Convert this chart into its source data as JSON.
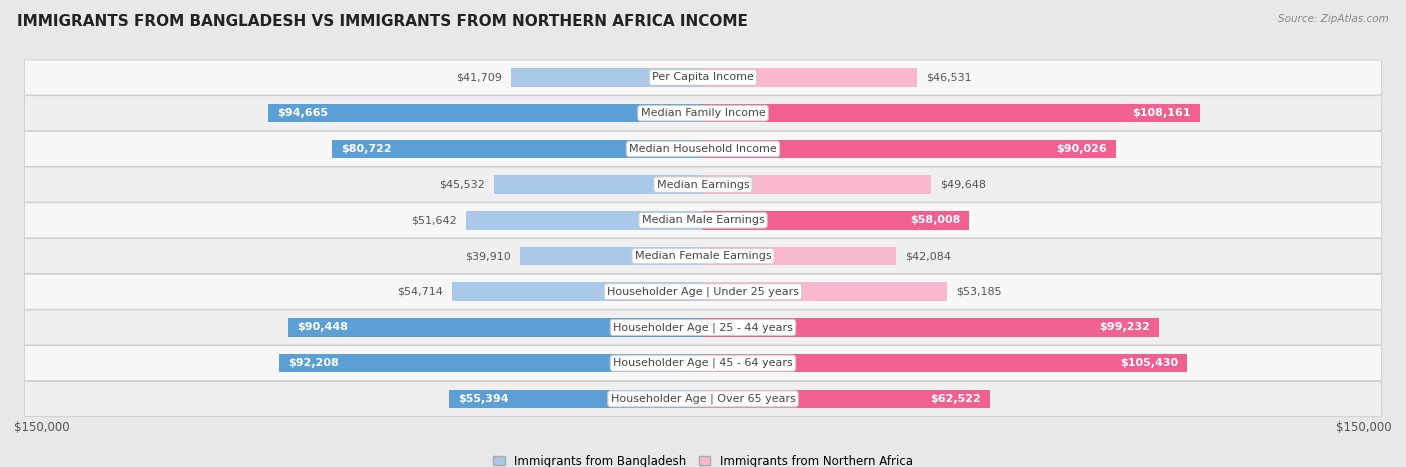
{
  "title": "IMMIGRANTS FROM BANGLADESH VS IMMIGRANTS FROM NORTHERN AFRICA INCOME",
  "source": "Source: ZipAtlas.com",
  "categories": [
    "Per Capita Income",
    "Median Family Income",
    "Median Household Income",
    "Median Earnings",
    "Median Male Earnings",
    "Median Female Earnings",
    "Householder Age | Under 25 years",
    "Householder Age | 25 - 44 years",
    "Householder Age | 45 - 64 years",
    "Householder Age | Over 65 years"
  ],
  "bangladesh_values": [
    41709,
    94665,
    80722,
    45532,
    51642,
    39910,
    54714,
    90448,
    92208,
    55394
  ],
  "northern_africa_values": [
    46531,
    108161,
    90026,
    49648,
    58008,
    42084,
    53185,
    99232,
    105430,
    62522
  ],
  "bangladesh_labels": [
    "$41,709",
    "$94,665",
    "$80,722",
    "$45,532",
    "$51,642",
    "$39,910",
    "$54,714",
    "$90,448",
    "$92,208",
    "$55,394"
  ],
  "northern_africa_labels": [
    "$46,531",
    "$108,161",
    "$90,026",
    "$49,648",
    "$58,008",
    "$42,084",
    "$53,185",
    "$99,232",
    "$105,430",
    "$62,522"
  ],
  "bangladesh_color_light": "#aac9e8",
  "bangladesh_color_dark": "#5b9fd4",
  "northern_africa_color_light": "#f7b8d0",
  "northern_africa_color_dark": "#f06090",
  "max_value": 150000,
  "background_color": "#e8e8e8",
  "row_bg_even": "#f7f7f7",
  "row_bg_odd": "#efefef",
  "legend_bangladesh": "Immigrants from Bangladesh",
  "legend_northern_africa": "Immigrants from Northern Africa",
  "xlabel_left": "$150,000",
  "xlabel_right": "$150,000",
  "title_fontsize": 11,
  "label_fontsize": 8,
  "category_fontsize": 8,
  "bar_height": 0.52,
  "inside_label_threshold": 55000,
  "bangladesh_inside_indices": [
    1,
    2,
    7,
    8
  ],
  "northern_africa_inside_indices": [
    1,
    2,
    7,
    8
  ]
}
